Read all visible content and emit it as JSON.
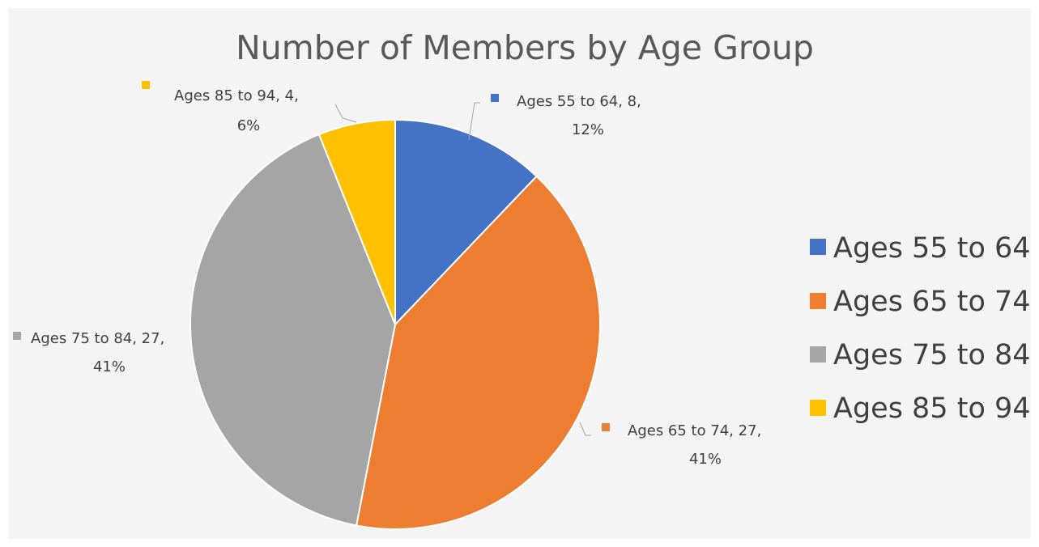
{
  "chart_data": {
    "type": "pie",
    "title": "Number of Members by Age Group",
    "categories": [
      "Ages 55 to 64",
      "Ages 65 to 74",
      "Ages 75 to 84",
      "Ages 85 to 94"
    ],
    "values": [
      8,
      27,
      27,
      4
    ],
    "percentages": [
      "12%",
      "41%",
      "41%",
      "6%"
    ],
    "colors": [
      "#4472c4",
      "#ed7d31",
      "#a5a5a5",
      "#ffc000"
    ],
    "data_labels": [
      {
        "line1": "Ages 55 to 64, 8,",
        "line2": "12%"
      },
      {
        "line1": "Ages 65 to 74, 27,",
        "line2": "41%"
      },
      {
        "line1": "Ages 75 to 84, 27,",
        "line2": "41%"
      },
      {
        "line1": "Ages 85 to 94, 4,",
        "line2": "6%"
      }
    ],
    "legend": {
      "position": "right",
      "entries": [
        "Ages 55 to 64",
        "Ages 65 to 74",
        "Ages 75 to 84",
        "Ages 85 to 94"
      ]
    }
  }
}
